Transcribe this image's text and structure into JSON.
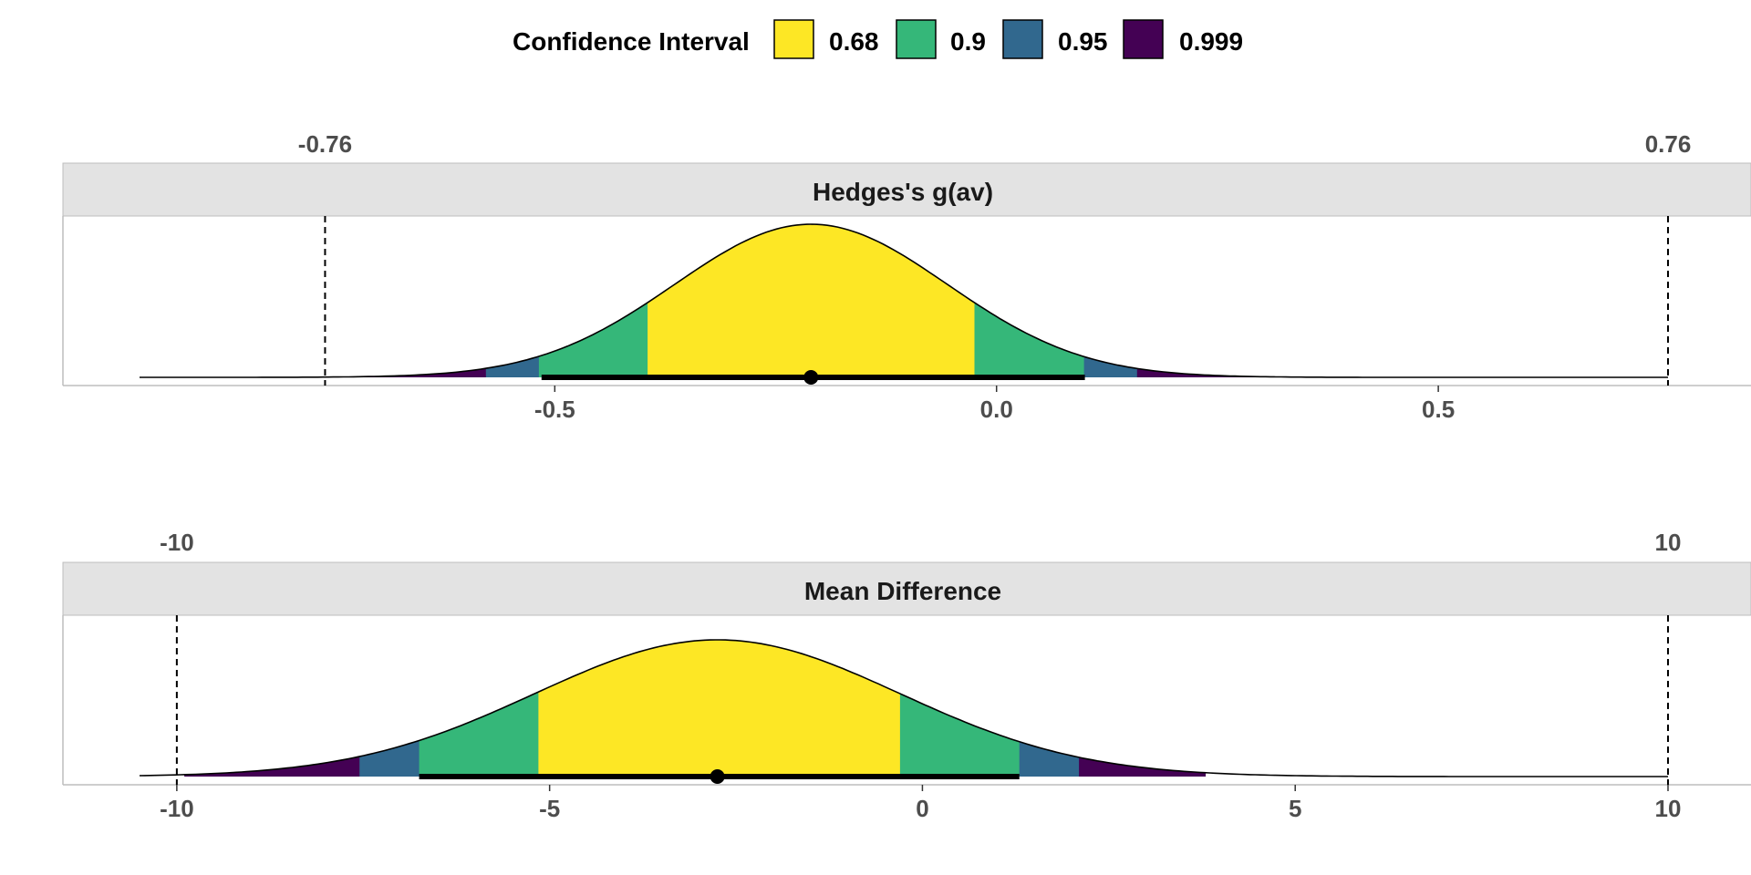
{
  "legend": {
    "title": "Confidence Interval",
    "items": [
      {
        "label": "0.68",
        "color": "#FDE725"
      },
      {
        "label": "0.9",
        "color": "#35B779"
      },
      {
        "label": "0.95",
        "color": "#31688E"
      },
      {
        "label": "0.999",
        "color": "#440154"
      }
    ]
  },
  "chart_data": [
    {
      "type": "area",
      "title": "Hedges's g(av)",
      "distribution": "normal",
      "estimate": -0.21,
      "se": 0.1545,
      "xlim": [
        -0.97,
        0.76
      ],
      "x_ticks": [
        "-0.5",
        "0.0",
        "0.5"
      ],
      "x_tick_values": [
        -0.5,
        0.0,
        0.5
      ],
      "equivalence_bounds": [
        -0.76,
        0.76
      ],
      "bound_labels": [
        "-0.76",
        "0.76"
      ],
      "bands": [
        {
          "level": "0.68",
          "lower": -0.395,
          "upper": -0.025
        },
        {
          "level": "0.9",
          "lower": -0.518,
          "upper": 0.099
        },
        {
          "level": "0.95",
          "lower": -0.578,
          "upper": 0.159
        },
        {
          "level": "0.999",
          "lower": -0.72,
          "upper": 0.31
        }
      ],
      "interval_line": [
        -0.515,
        0.1
      ],
      "grid": false
    },
    {
      "type": "area",
      "title": "Mean Difference",
      "distribution": "normal",
      "estimate": -2.75,
      "se": 2.45,
      "xlim": [
        -10.5,
        10
      ],
      "x_ticks": [
        "-10",
        "-5",
        "0",
        "5",
        "10"
      ],
      "x_tick_values": [
        -10,
        -5,
        0,
        5,
        10
      ],
      "equivalence_bounds": [
        -10,
        10
      ],
      "bound_labels": [
        "-10",
        "10"
      ],
      "bands": [
        {
          "level": "0.68",
          "lower": -5.15,
          "upper": -0.3
        },
        {
          "level": "0.9",
          "lower": -6.75,
          "upper": 1.3
        },
        {
          "level": "0.95",
          "lower": -7.55,
          "upper": 2.1
        },
        {
          "level": "0.999",
          "lower": -9.9,
          "upper": 3.8
        }
      ],
      "interval_line": [
        -6.75,
        1.3
      ],
      "grid": false
    }
  ]
}
